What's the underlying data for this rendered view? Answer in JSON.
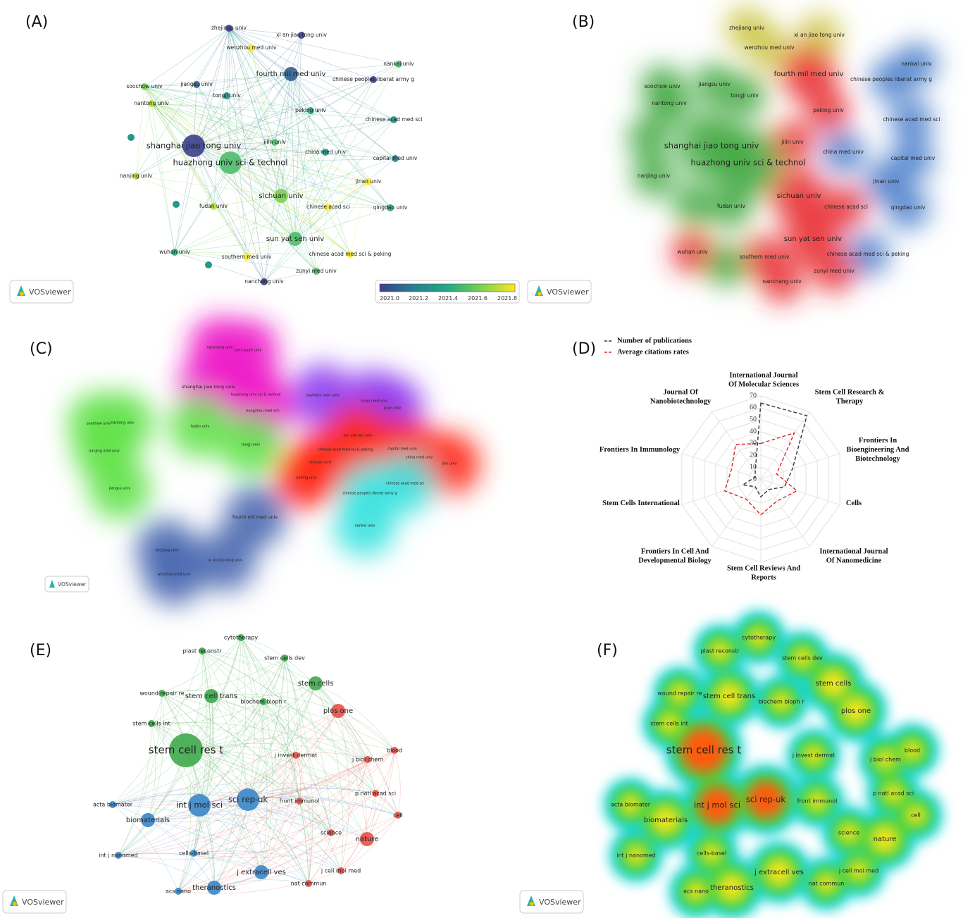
{
  "panels": {
    "A": {
      "label": "(A)"
    },
    "B": {
      "label": "(B)"
    },
    "C": {
      "label": "(C)"
    },
    "D": {
      "label": "(D)"
    },
    "E": {
      "label": "(E)"
    },
    "F": {
      "label": "(F)"
    }
  },
  "vosviewer_label": "VOSviewer",
  "colorbar": {
    "ticks": [
      "2021.0",
      "2021.2",
      "2021.4",
      "2021.6",
      "2021.8"
    ],
    "colors": [
      "#3b3f8c",
      "#2a7f8e",
      "#22a884",
      "#7ad151",
      "#fde725"
    ]
  },
  "institutions": [
    {
      "label": "zhejiang univ",
      "size": "s",
      "year": 2021.0,
      "cluster": "yellow"
    },
    {
      "label": "xi an jiao tong univ",
      "size": "s",
      "year": 2021.0,
      "cluster": "yellow"
    },
    {
      "label": "wenzhou med univ",
      "size": "s",
      "year": 2021.8,
      "cluster": "yellow"
    },
    {
      "label": "fourth mil med univ",
      "size": "m",
      "year": 2021.1,
      "cluster": "red"
    },
    {
      "label": "nankai univ",
      "size": "s",
      "year": 2021.5,
      "cluster": "blue"
    },
    {
      "label": "chinese peoples liberat army g",
      "size": "s",
      "year": 2021.0,
      "cluster": "blue"
    },
    {
      "label": "soochow univ",
      "size": "s",
      "year": 2021.6,
      "cluster": "green"
    },
    {
      "label": "jiangsu univ",
      "size": "s",
      "year": 2021.1,
      "cluster": "green"
    },
    {
      "label": "tongji univ",
      "size": "s",
      "year": 2021.3,
      "cluster": "green"
    },
    {
      "label": "nantong univ",
      "size": "s",
      "year": 2021.7,
      "cluster": "green"
    },
    {
      "label": "peking univ",
      "size": "s",
      "year": 2021.4,
      "cluster": "red"
    },
    {
      "label": "chinese acad med sci",
      "size": "s",
      "year": 2021.3,
      "cluster": "blue"
    },
    {
      "label": "shanghai jiao tong univ",
      "size": "l",
      "year": 2021.0,
      "cluster": "green"
    },
    {
      "label": "jilin univ",
      "size": "s",
      "year": 2021.5,
      "cluster": "red"
    },
    {
      "label": "china med univ",
      "size": "s",
      "year": 2021.3,
      "cluster": "blue"
    },
    {
      "label": "huazhong univ sci & technol",
      "size": "l",
      "year": 2021.5,
      "cluster": "green"
    },
    {
      "label": "capital med univ",
      "size": "s",
      "year": 2021.2,
      "cluster": "blue"
    },
    {
      "label": "nanjing univ",
      "size": "s",
      "year": 2021.7,
      "cluster": "green"
    },
    {
      "label": "jinan univ",
      "size": "s",
      "year": 2021.8,
      "cluster": "blue"
    },
    {
      "label": "sichuan univ",
      "size": "m",
      "year": 2021.6,
      "cluster": "red"
    },
    {
      "label": "fudan univ",
      "size": "s",
      "year": 2021.7,
      "cluster": "green"
    },
    {
      "label": "chinese acad sci",
      "size": "s",
      "year": 2021.8,
      "cluster": "red"
    },
    {
      "label": "qingdao univ",
      "size": "s",
      "year": 2021.4,
      "cluster": "blue"
    },
    {
      "label": "sun yat sen univ",
      "size": "m",
      "year": 2021.5,
      "cluster": "red"
    },
    {
      "label": "wuhan univ",
      "size": "s",
      "year": 2021.4,
      "cluster": "red"
    },
    {
      "label": "southern med univ",
      "size": "s",
      "year": 2021.8,
      "cluster": "red"
    },
    {
      "label": "chinese acad med sci & peking",
      "size": "s",
      "year": 2021.8,
      "cluster": "blue"
    },
    {
      "label": "zunyi med univ",
      "size": "s",
      "year": 2021.5,
      "cluster": "red"
    },
    {
      "label": "nanchang univ",
      "size": "s",
      "year": 2021.0,
      "cluster": "red"
    }
  ],
  "countries_panel_c": [
    {
      "label": "nanchang univ",
      "cluster": "magenta"
    },
    {
      "label": "cent south univ",
      "cluster": "magenta"
    },
    {
      "label": "shanghai jiao tong univ",
      "cluster": "magenta"
    },
    {
      "label": "huazhong univ sci & technol",
      "cluster": "magenta"
    },
    {
      "label": "hangzhou med sch",
      "cluster": "magenta"
    },
    {
      "label": "southern med univ",
      "cluster": "purple"
    },
    {
      "label": "zunyi med univ",
      "cluster": "purple"
    },
    {
      "label": "jinan univ",
      "cluster": "purple"
    },
    {
      "label": "soochow univ",
      "cluster": "green"
    },
    {
      "label": "nantong univ",
      "cluster": "green"
    },
    {
      "label": "fudan univ",
      "cluster": "green"
    },
    {
      "label": "nanjing med univ",
      "cluster": "green"
    },
    {
      "label": "tongji univ",
      "cluster": "green"
    },
    {
      "label": "jiangsu univ",
      "cluster": "green"
    },
    {
      "label": "sun yat sen univ",
      "cluster": "red"
    },
    {
      "label": "chinese acad med sci & peking",
      "cluster": "red"
    },
    {
      "label": "capital med univ",
      "cluster": "red"
    },
    {
      "label": "china med univ",
      "cluster": "red"
    },
    {
      "label": "sichuan univ",
      "cluster": "red"
    },
    {
      "label": "jilin univ",
      "cluster": "red"
    },
    {
      "label": "peking univ",
      "cluster": "red"
    },
    {
      "label": "chinese acad med sci",
      "cluster": "cyan"
    },
    {
      "label": "chinese peoples liberat army g",
      "cluster": "cyan"
    },
    {
      "label": "nankai univ",
      "cluster": "cyan"
    },
    {
      "label": "fourth mil med univ",
      "cluster": "navy"
    },
    {
      "label": "zhejiang univ",
      "cluster": "navy"
    },
    {
      "label": "xi an jiao tong univ",
      "cluster": "navy"
    },
    {
      "label": "wenzhou med univ",
      "cluster": "navy"
    }
  ],
  "journals": [
    {
      "label": "cytotherapy",
      "size": "s",
      "cluster": "green"
    },
    {
      "label": "plast reconstr",
      "size": "s",
      "cluster": "green"
    },
    {
      "label": "stem cells dev",
      "size": "s",
      "cluster": "green"
    },
    {
      "label": "stem cells",
      "size": "m",
      "cluster": "green"
    },
    {
      "label": "wound repair re",
      "size": "s",
      "cluster": "green"
    },
    {
      "label": "stem cell trans",
      "size": "m",
      "cluster": "green"
    },
    {
      "label": "biochem bioph r",
      "size": "s",
      "cluster": "green"
    },
    {
      "label": "plos one",
      "size": "m",
      "cluster": "red"
    },
    {
      "label": "stem cells int",
      "size": "s",
      "cluster": "green"
    },
    {
      "label": "stem cell res t",
      "size": "xl",
      "cluster": "green"
    },
    {
      "label": "j invest dermat",
      "size": "s",
      "cluster": "red"
    },
    {
      "label": "blood",
      "size": "s",
      "cluster": "red"
    },
    {
      "label": "j biol chem",
      "size": "s",
      "cluster": "red"
    },
    {
      "label": "acta biomater",
      "size": "s",
      "cluster": "blue"
    },
    {
      "label": "int j mol sci",
      "size": "l",
      "cluster": "blue"
    },
    {
      "label": "sci rep-uk",
      "size": "l",
      "cluster": "blue"
    },
    {
      "label": "front immunol",
      "size": "s",
      "cluster": "red"
    },
    {
      "label": "p natl acad sci",
      "size": "s",
      "cluster": "red"
    },
    {
      "label": "biomaterials",
      "size": "m",
      "cluster": "blue"
    },
    {
      "label": "cell",
      "size": "s",
      "cluster": "red"
    },
    {
      "label": "science",
      "size": "s",
      "cluster": "red"
    },
    {
      "label": "nature",
      "size": "m",
      "cluster": "red"
    },
    {
      "label": "int j nanomed",
      "size": "s",
      "cluster": "blue"
    },
    {
      "label": "cells-basel",
      "size": "s",
      "cluster": "blue"
    },
    {
      "label": "j extracell ves",
      "size": "m",
      "cluster": "blue"
    },
    {
      "label": "j cell mol med",
      "size": "s",
      "cluster": "red"
    },
    {
      "label": "theranostics",
      "size": "m",
      "cluster": "blue"
    },
    {
      "label": "acs nano",
      "size": "s",
      "cluster": "blue"
    },
    {
      "label": "nat commun",
      "size": "s",
      "cluster": "red"
    }
  ],
  "chart_data": {
    "type": "radar",
    "legend": [
      {
        "name": "Number of publications",
        "color": "#333333",
        "dash": "dashed"
      },
      {
        "name": "Average citations rates",
        "color": "#e02020",
        "dash": "dashed"
      }
    ],
    "axis_ticks": [
      0,
      10,
      20,
      30,
      40,
      50,
      60,
      70
    ],
    "rmax": 70,
    "categories": [
      "International Journal Of Molecular Sciences",
      "Stem Cell Research & Therapy",
      "Frontiers In Bioengineering And Biotechnology",
      "Cells",
      "International Journal Of Nanomedicine",
      "Stem Cell Reviews And Reports",
      "Frontiers In Cell And Developmental Biology",
      "Stem Cells International",
      "Frontiers In Immunology",
      "Journal Of Nanobiotechnology"
    ],
    "series": [
      {
        "name": "Number of publications",
        "values": [
          64,
          66,
          28,
          21,
          11,
          15,
          8,
          16,
          5,
          8
        ]
      },
      {
        "name": "Average citations rates",
        "values": [
          30,
          48,
          14,
          32,
          23,
          30,
          21,
          32,
          26,
          36
        ]
      }
    ]
  }
}
